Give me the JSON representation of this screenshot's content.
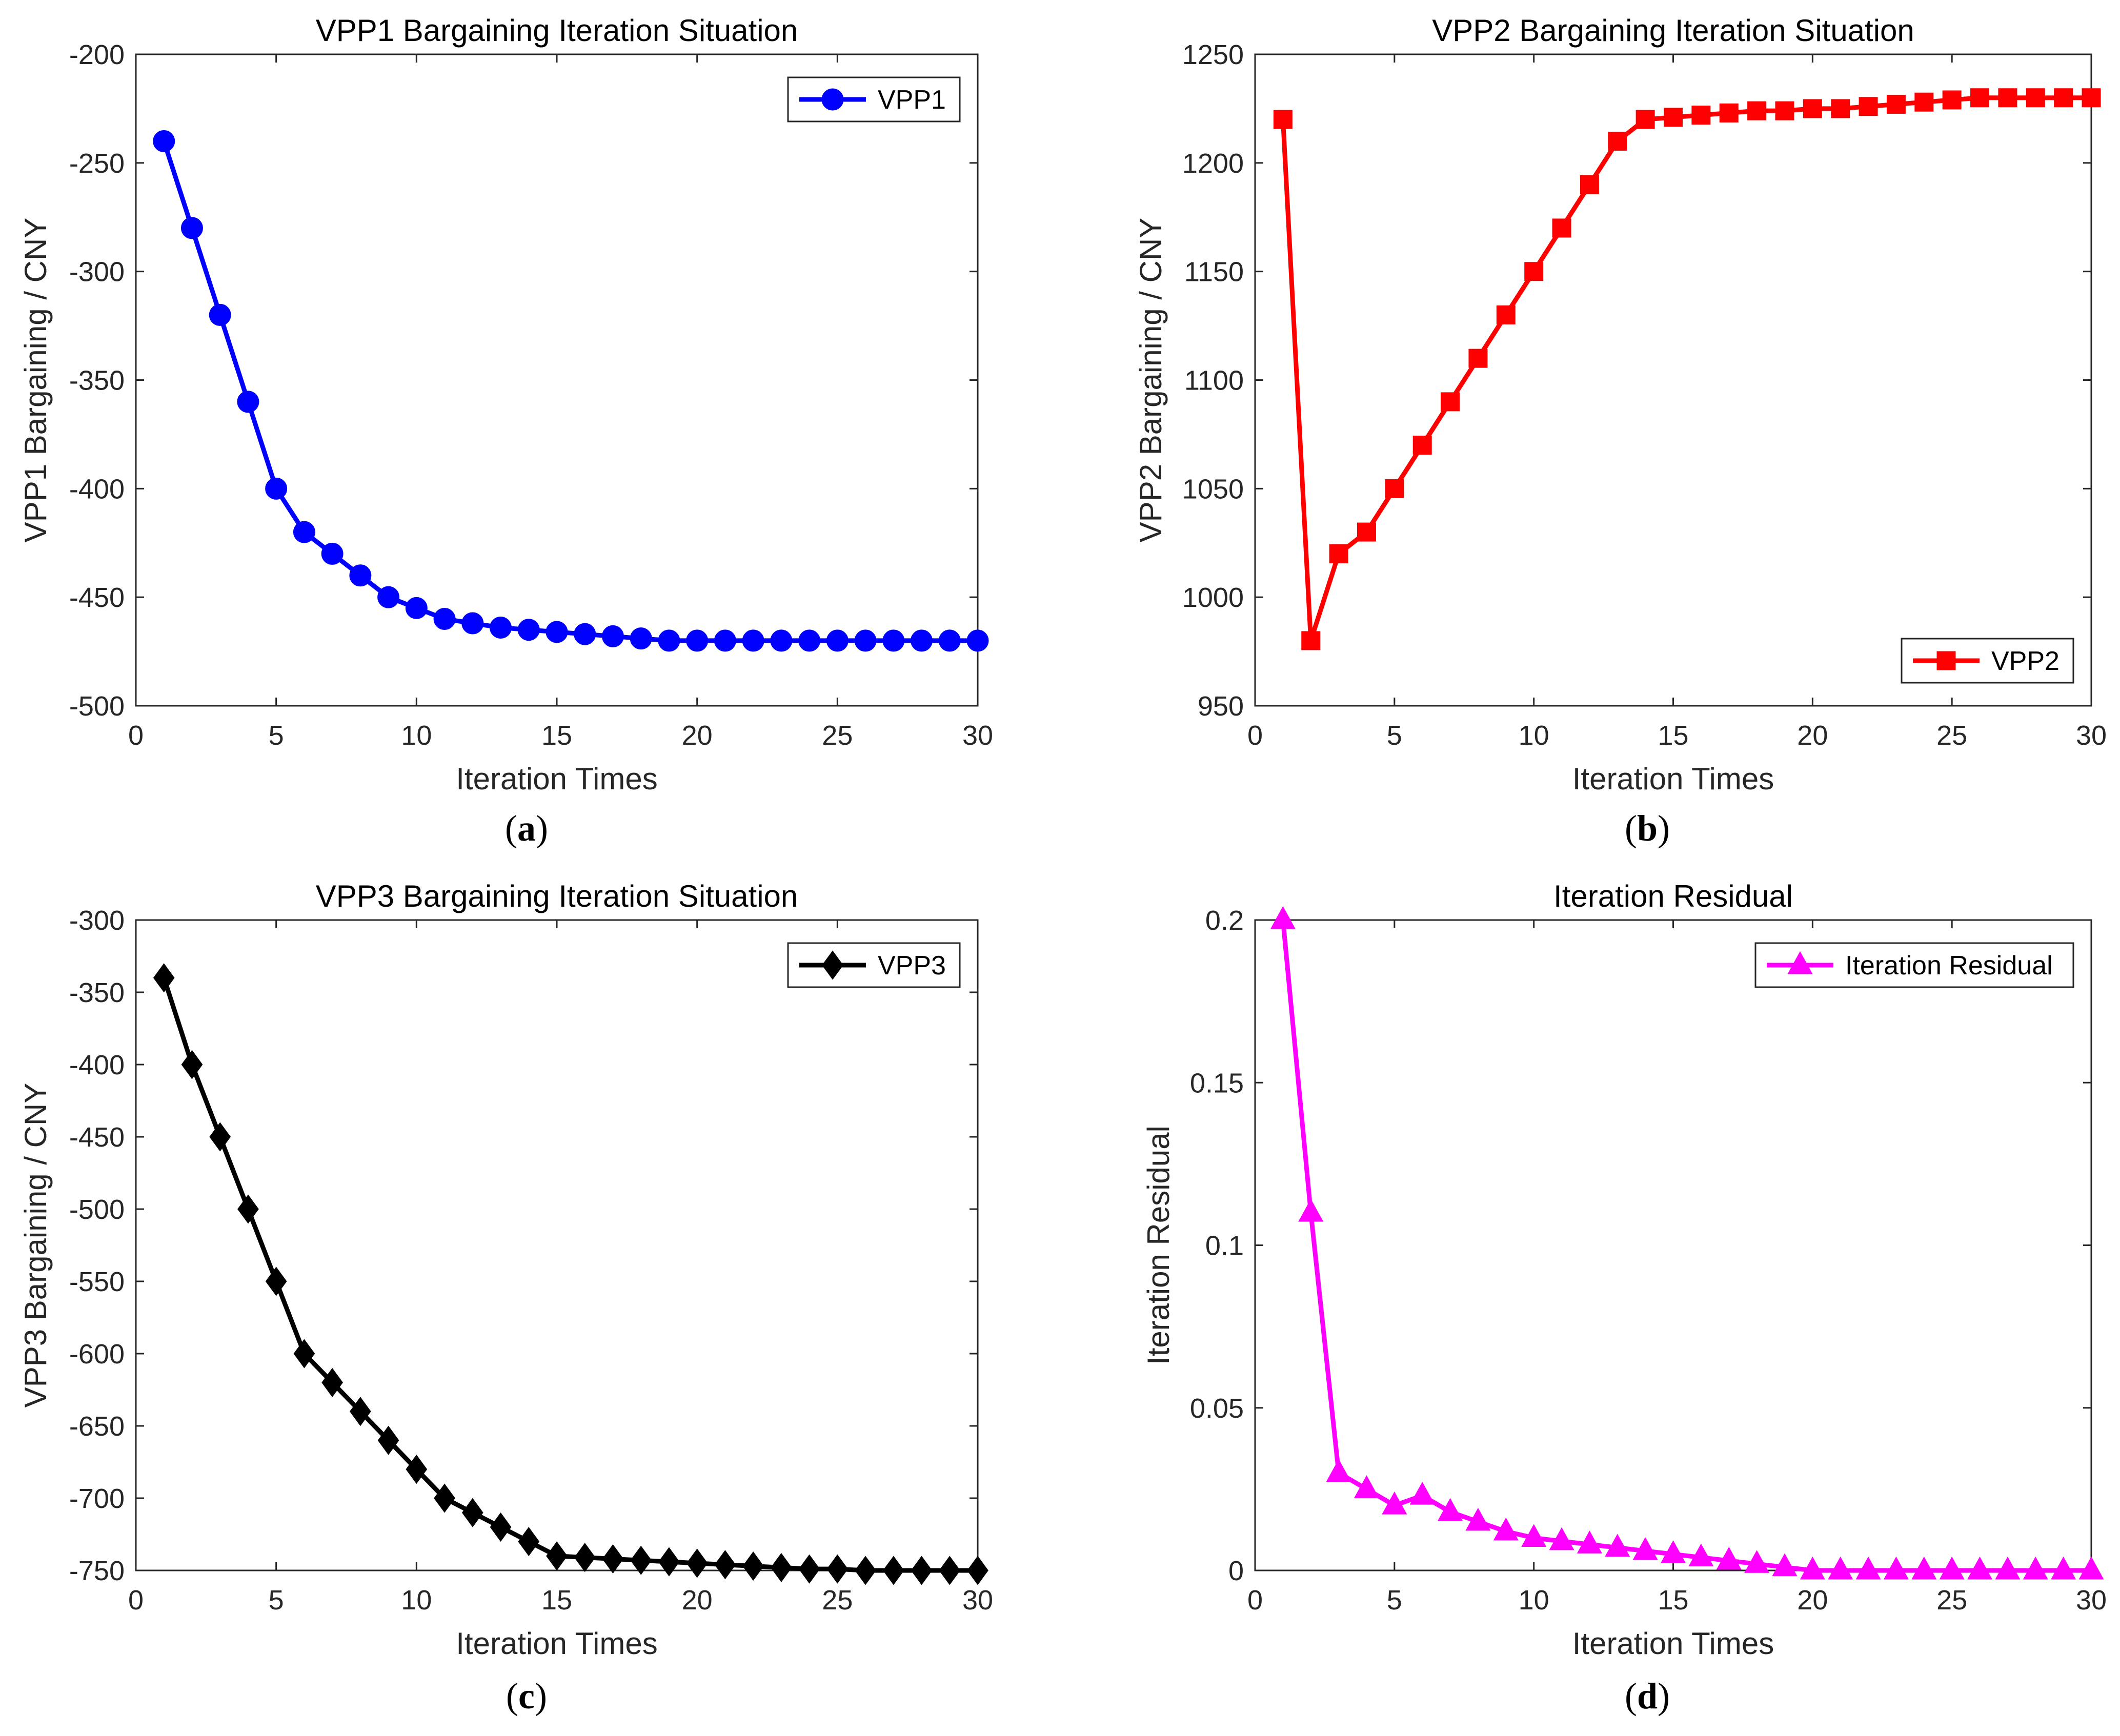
{
  "chart_data": [
    {
      "type": "line",
      "panel_label": "a",
      "title": "VPP1 Bargaining Iteration Situation",
      "xlabel": "Iteration Times",
      "ylabel": "VPP1 Bargaining / CNY",
      "xlim": [
        0,
        30
      ],
      "ylim": [
        -500,
        -200
      ],
      "xticks": [
        0,
        5,
        10,
        15,
        20,
        25,
        30
      ],
      "yticks": [
        -500,
        -450,
        -400,
        -350,
        -300,
        -250,
        -200
      ],
      "legend_position": "top-right",
      "series": [
        {
          "name": "VPP1",
          "color": "#0000ff",
          "marker": "circle",
          "x": [
            1,
            2,
            3,
            4,
            5,
            6,
            7,
            8,
            9,
            10,
            11,
            12,
            13,
            14,
            15,
            16,
            17,
            18,
            19,
            20,
            21,
            22,
            23,
            24,
            25,
            26,
            27,
            28,
            29,
            30
          ],
          "values": [
            -240,
            -280,
            -320,
            -360,
            -400,
            -420,
            -430,
            -440,
            -450,
            -455,
            -460,
            -462,
            -464,
            -465,
            -466,
            -467,
            -468,
            -469,
            -470,
            -470,
            -470,
            -470,
            -470,
            -470,
            -470,
            -470,
            -470,
            -470,
            -470,
            -470
          ]
        }
      ]
    },
    {
      "type": "line",
      "panel_label": "b",
      "title": "VPP2 Bargaining Iteration Situation",
      "xlabel": "Iteration Times",
      "ylabel": "VPP2 Bargaining / CNY",
      "xlim": [
        0,
        30
      ],
      "ylim": [
        950,
        1250
      ],
      "xticks": [
        0,
        5,
        10,
        15,
        20,
        25,
        30
      ],
      "yticks": [
        950,
        1000,
        1050,
        1100,
        1150,
        1200,
        1250
      ],
      "legend_position": "bottom-right",
      "series": [
        {
          "name": "VPP2",
          "color": "#ff0000",
          "marker": "square",
          "x": [
            1,
            2,
            3,
            4,
            5,
            6,
            7,
            8,
            9,
            10,
            11,
            12,
            13,
            14,
            15,
            16,
            17,
            18,
            19,
            20,
            21,
            22,
            23,
            24,
            25,
            26,
            27,
            28,
            29,
            30
          ],
          "values": [
            1220,
            980,
            1020,
            1030,
            1050,
            1070,
            1090,
            1110,
            1130,
            1150,
            1170,
            1190,
            1210,
            1220,
            1221,
            1222,
            1223,
            1224,
            1224,
            1225,
            1225,
            1226,
            1227,
            1228,
            1229,
            1230,
            1230,
            1230,
            1230,
            1230
          ]
        }
      ]
    },
    {
      "type": "line",
      "panel_label": "c",
      "title": "VPP3 Bargaining Iteration Situation",
      "xlabel": "Iteration Times",
      "ylabel": "VPP3 Bargaining / CNY",
      "xlim": [
        0,
        30
      ],
      "ylim": [
        -750,
        -300
      ],
      "xticks": [
        0,
        5,
        10,
        15,
        20,
        25,
        30
      ],
      "yticks": [
        -750,
        -700,
        -650,
        -600,
        -550,
        -500,
        -450,
        -400,
        -350,
        -300
      ],
      "legend_position": "top-right",
      "series": [
        {
          "name": "VPP3",
          "color": "#000000",
          "marker": "diamond",
          "x": [
            1,
            2,
            3,
            4,
            5,
            6,
            7,
            8,
            9,
            10,
            11,
            12,
            13,
            14,
            15,
            16,
            17,
            18,
            19,
            20,
            21,
            22,
            23,
            24,
            25,
            26,
            27,
            28,
            29,
            30
          ],
          "values": [
            -340,
            -400,
            -450,
            -500,
            -550,
            -600,
            -620,
            -640,
            -660,
            -680,
            -700,
            -710,
            -720,
            -730,
            -740,
            -741,
            -742,
            -743,
            -744,
            -745,
            -746,
            -747,
            -748,
            -749,
            -749,
            -750,
            -750,
            -750,
            -750,
            -750
          ]
        }
      ]
    },
    {
      "type": "line",
      "panel_label": "d",
      "title": "Iteration Residual",
      "xlabel": "Iteration Times",
      "ylabel": "Iteration Residual",
      "xlim": [
        0,
        30
      ],
      "ylim": [
        0,
        0.2
      ],
      "xticks": [
        0,
        5,
        10,
        15,
        20,
        25,
        30
      ],
      "yticks": [
        0,
        0.05,
        0.1,
        0.15,
        0.2
      ],
      "legend_position": "top-right",
      "series": [
        {
          "name": "Iteration Residual",
          "color": "#ff00ff",
          "marker": "triangle",
          "x": [
            1,
            2,
            3,
            4,
            5,
            6,
            7,
            8,
            9,
            10,
            11,
            12,
            13,
            14,
            15,
            16,
            17,
            18,
            19,
            20,
            21,
            22,
            23,
            24,
            25,
            26,
            27,
            28,
            29,
            30
          ],
          "values": [
            0.2,
            0.11,
            0.03,
            0.025,
            0.02,
            0.023,
            0.018,
            0.015,
            0.012,
            0.01,
            0.009,
            0.008,
            0.007,
            0.006,
            0.005,
            0.004,
            0.003,
            0.002,
            0.001,
            0,
            0,
            0,
            0,
            0,
            0,
            0,
            0,
            0,
            0,
            0
          ]
        }
      ]
    }
  ]
}
